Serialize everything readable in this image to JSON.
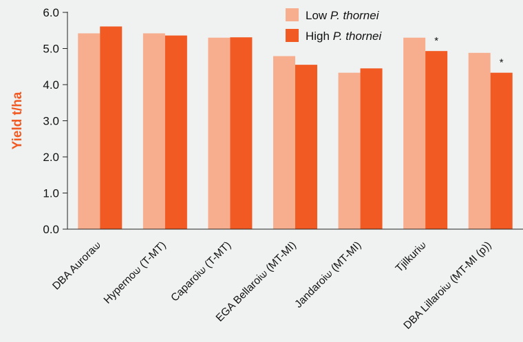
{
  "chart_data": {
    "type": "bar",
    "ylabel": "Yield t/ha",
    "ylim": [
      0,
      6
    ],
    "yticks": [
      "0.0",
      "1.0",
      "2.0",
      "3.0",
      "4.0",
      "5.0",
      "6.0"
    ],
    "categories": [
      "DBA Aurora⟒",
      "Hyperno⟒ (T-MT)",
      "Caparoi⟒ (T-MT)",
      "EGA Bellaroi⟒ (MT-MI)",
      "Jandaroi⟒ (MT-MI)",
      "Tjilkuri⟒",
      "DBA Lillaroi⟒ (MT-MI (p))"
    ],
    "series": [
      {
        "name": "Low P. thornei",
        "legend_prefix": "Low ",
        "legend_italic": "P. thornei",
        "color": "#f7ae8f",
        "values": [
          5.42,
          5.42,
          5.3,
          4.79,
          4.33,
          5.3,
          4.88
        ]
      },
      {
        "name": "High P. thornei",
        "legend_prefix": "High ",
        "legend_italic": "P. thornei",
        "color": "#f15a22",
        "values": [
          5.61,
          5.36,
          5.31,
          4.55,
          4.45,
          4.93,
          4.33
        ]
      }
    ],
    "annotations": [
      {
        "category_index": 5,
        "series_index": 1,
        "text": "*"
      },
      {
        "category_index": 6,
        "series_index": 1,
        "text": "*"
      }
    ],
    "axis_title_color": "#f15a22",
    "grid": false,
    "legend_position": "top-right"
  }
}
